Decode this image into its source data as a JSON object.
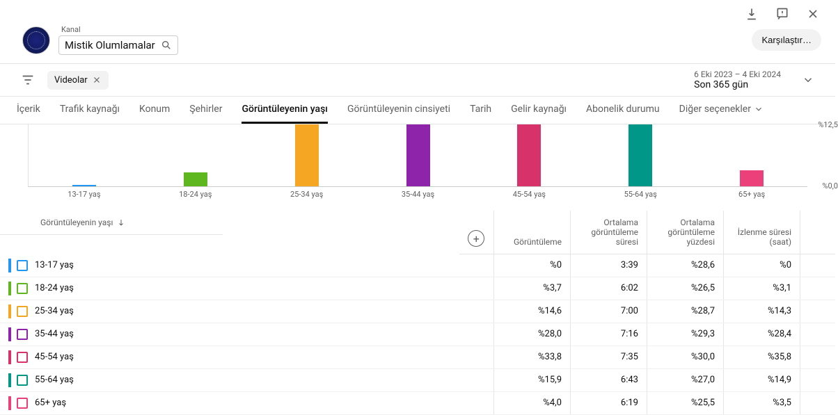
{
  "channel": {
    "label": "Kanal",
    "name": "Mistik Olumlamalar"
  },
  "actions": {
    "compare": "Karşılaştır…"
  },
  "filter": {
    "chip": "Videolar"
  },
  "date": {
    "range": "6 Eki 2023 – 4 Eki 2024",
    "preset": "Son 365 gün"
  },
  "tabs": {
    "items": [
      "İçerik",
      "Trafik kaynağı",
      "Konum",
      "Şehirler",
      "Görüntüleyenin yaşı",
      "Görüntüleyenin cinsiyeti",
      "Tarih",
      "Gelir kaynağı",
      "Abonelik durumu"
    ],
    "more": "Diğer seçenekler",
    "activeIndex": 4
  },
  "chart": {
    "type": "bar",
    "max_percent": 12.5,
    "y_top_label": "%12,5",
    "y_bottom_label": "%0,0",
    "categories": [
      "13-17 yaş",
      "18-24 yaş",
      "25-34 yaş",
      "35-44 yaş",
      "45-54 yaş",
      "55-64 yaş",
      "65+ yaş"
    ],
    "heights_pct_of_max": [
      2,
      22,
      100,
      100,
      100,
      100,
      26
    ],
    "colors": [
      "#2196f3",
      "#5fb71f",
      "#f5a623",
      "#8e24aa",
      "#d8326a",
      "#009688",
      "#ec407a"
    ]
  },
  "table": {
    "header": {
      "age": "Görüntüleyenin yaşı",
      "views": "Görüntüleme",
      "avg_dur": "Ortalama görüntüleme süresi",
      "avg_pct": "Ortalama görüntüleme yüzdesi",
      "watch_hrs": "İzlenme süresi (saat)"
    },
    "rows": [
      {
        "color": "#2196f3",
        "age": "13-17 yaş",
        "views": "%0",
        "avg_dur": "3:39",
        "avg_pct": "%28,6",
        "watch": "%0"
      },
      {
        "color": "#5fb71f",
        "age": "18-24 yaş",
        "views": "%3,7",
        "avg_dur": "6:02",
        "avg_pct": "%26,5",
        "watch": "%3,1"
      },
      {
        "color": "#f5a623",
        "age": "25-34 yaş",
        "views": "%14,6",
        "avg_dur": "7:00",
        "avg_pct": "%28,7",
        "watch": "%14,3"
      },
      {
        "color": "#8e24aa",
        "age": "35-44 yaş",
        "views": "%28,0",
        "avg_dur": "7:16",
        "avg_pct": "%29,3",
        "watch": "%28,4"
      },
      {
        "color": "#d8326a",
        "age": "45-54 yaş",
        "views": "%33,8",
        "avg_dur": "7:35",
        "avg_pct": "%30,0",
        "watch": "%35,8"
      },
      {
        "color": "#009688",
        "age": "55-64 yaş",
        "views": "%15,9",
        "avg_dur": "6:43",
        "avg_pct": "%27,0",
        "watch": "%14,9"
      },
      {
        "color": "#ec407a",
        "age": "65+ yaş",
        "views": "%4,0",
        "avg_dur": "6:19",
        "avg_pct": "%25,5",
        "watch": "%3,5"
      }
    ]
  }
}
